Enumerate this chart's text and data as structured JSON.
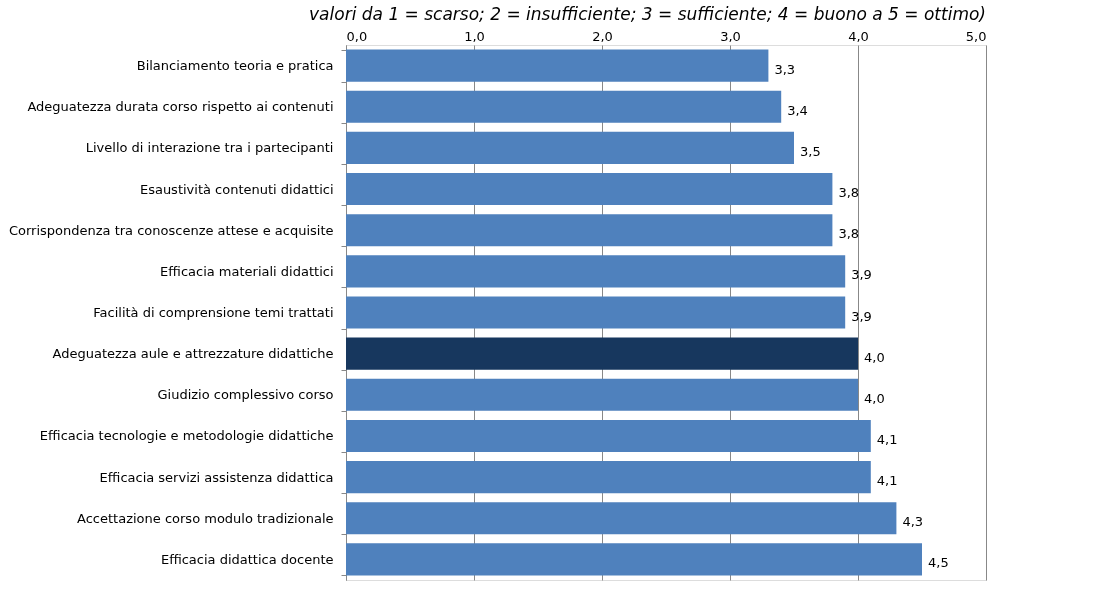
{
  "chart_data": {
    "type": "bar",
    "orientation": "horizontal",
    "subtitle": "valori da 1 = scarso; 2 = insufficiente; 3 = sufficiente; 4 = buono a 5 = ottimo)",
    "categories": [
      "Bilanciamento teoria e pratica",
      "Adeguatezza durata corso rispetto ai contenuti",
      "Livello di interazione tra i partecipanti",
      "Esaustività contenuti didattici",
      "Corrispondenza tra conoscenze attese e acquisite",
      "Efficacia materiali didattici",
      "Facilità di comprensione  temi trattati",
      "Adeguatezza aule e attrezzature didattiche",
      "Giudizio complessivo corso",
      "Efficacia tecnologie e metodologie didattiche",
      "Efficacia servizi assistenza didattica",
      "Accettazione corso modulo tradizionale",
      "Efficacia didattica docente"
    ],
    "values": [
      3.3,
      3.4,
      3.5,
      3.8,
      3.8,
      3.9,
      3.9,
      4.0,
      4.0,
      4.1,
      4.1,
      4.3,
      4.5
    ],
    "value_labels": [
      "3,3",
      "3,4",
      "3,5",
      "3,8",
      "3,8",
      "3,9",
      "3,9",
      "4,0",
      "4,0",
      "4,1",
      "4,1",
      "4,3",
      "4,5"
    ],
    "colors": [
      "#4f81bd",
      "#4f81bd",
      "#4f81bd",
      "#4f81bd",
      "#4f81bd",
      "#4f81bd",
      "#4f81bd",
      "#17375e",
      "#4f81bd",
      "#4f81bd",
      "#4f81bd",
      "#4f81bd",
      "#4f81bd"
    ],
    "xlim": [
      0,
      5
    ],
    "xticks": [
      {
        "value": 0,
        "label": "0,0"
      },
      {
        "value": 1,
        "label": "1,0"
      },
      {
        "value": 2,
        "label": "2,0"
      },
      {
        "value": 3,
        "label": "3,0"
      },
      {
        "value": 4,
        "label": "4,0"
      },
      {
        "value": 5,
        "label": "5,0"
      }
    ],
    "grid": "x"
  }
}
